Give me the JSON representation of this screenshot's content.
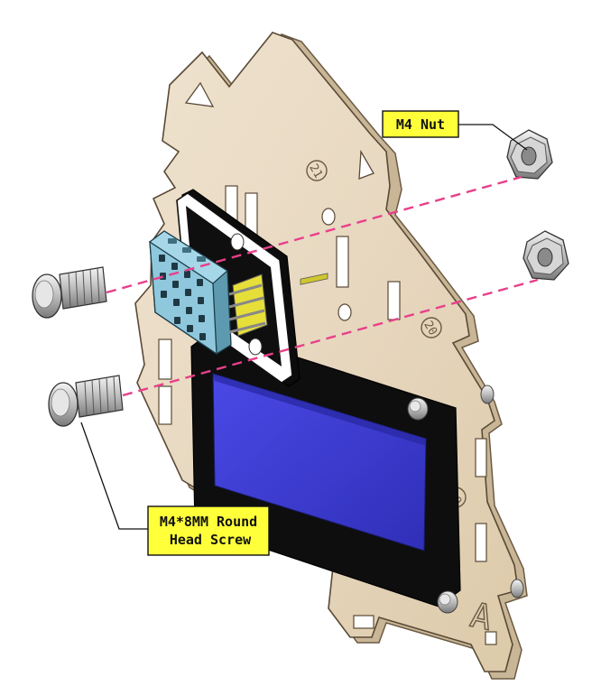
{
  "callouts": {
    "nut_label": "M4 Nut",
    "screw_label_line1": "M4*8MM Round",
    "screw_label_line2": "Head Screw"
  },
  "plate_marks": {
    "mark_21": "21",
    "mark_20": "20",
    "mark_19": "19",
    "mark_a": "A"
  },
  "colors": {
    "plywood": "#eadcc6",
    "plywood_edge": "#c8b497",
    "lcd_screen": "#3b3bd6",
    "lcd_frame": "#111111",
    "sensor_blue": "#8fc8dc",
    "pins_yellow": "#e6df3a",
    "callout_fill": "#ffff3a",
    "dash_pink": "#e8408a"
  }
}
